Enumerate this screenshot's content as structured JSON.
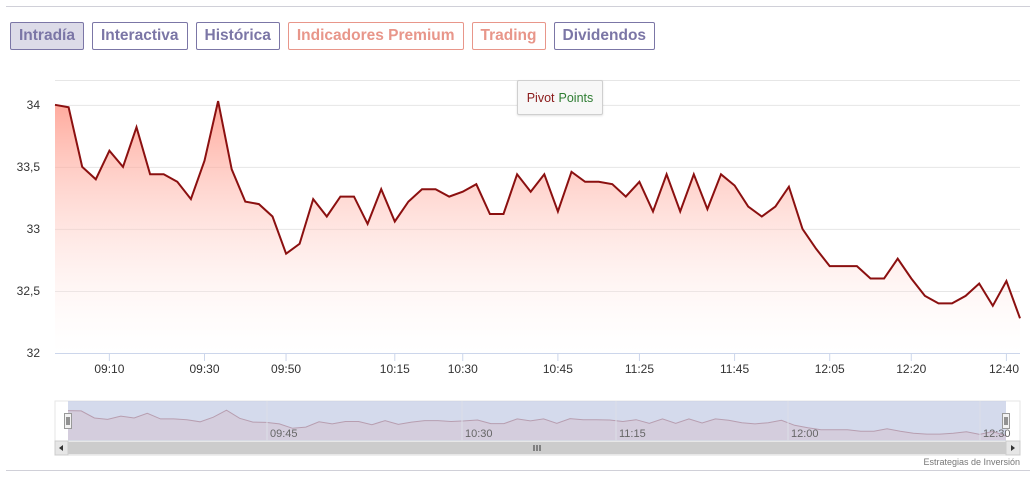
{
  "tabs": [
    {
      "label": "Intradía",
      "style": "purple",
      "active": true
    },
    {
      "label": "Interactiva",
      "style": "purple",
      "active": false
    },
    {
      "label": "Histórica",
      "style": "purple",
      "active": false
    },
    {
      "label": "Indicadores Premium",
      "style": "salmon",
      "active": false
    },
    {
      "label": "Trading",
      "style": "salmon",
      "active": false
    },
    {
      "label": "Dividendos",
      "style": "purple",
      "active": false
    }
  ],
  "pivot_button": {
    "word1": "Pivot",
    "word2": "Points"
  },
  "credit": "Estrategias de Inversión",
  "colors": {
    "line": "#8b1010",
    "fill_top": "#ff8c7a",
    "navigator_mask": "#c5cde6",
    "tab_purple": "#7b76a6",
    "tab_salmon": "#e8968a"
  },
  "chart_data": {
    "type": "area",
    "title": "",
    "xlabel": "",
    "ylabel": "",
    "ylim": [
      32,
      34.2
    ],
    "y_ticks": [
      "32",
      "32,5",
      "33",
      "33,5",
      "34"
    ],
    "y_tick_values": [
      32,
      32.5,
      33,
      33.5,
      34
    ],
    "x_ticks": [
      {
        "label": "09:10",
        "index": 4
      },
      {
        "label": "09:30",
        "index": 11
      },
      {
        "label": "09:50",
        "index": 17
      },
      {
        "label": "10:15",
        "index": 25
      },
      {
        "label": "10:30",
        "index": 30
      },
      {
        "label": "10:45",
        "index": 37
      },
      {
        "label": "11:25",
        "index": 43
      },
      {
        "label": "11:45",
        "index": 50
      },
      {
        "label": "12:05",
        "index": 57
      },
      {
        "label": "12:20",
        "index": 63
      },
      {
        "label": "12:40",
        "index": 70
      }
    ],
    "series": [
      {
        "values": [
          34.0,
          33.98,
          33.5,
          33.4,
          33.63,
          33.5,
          33.82,
          33.44,
          33.44,
          33.38,
          33.24,
          33.55,
          34.03,
          33.48,
          33.22,
          33.2,
          33.1,
          32.8,
          32.88,
          33.24,
          33.1,
          33.26,
          33.26,
          33.04,
          33.32,
          33.06,
          33.22,
          33.32,
          33.32,
          33.26,
          33.3,
          33.36,
          33.12,
          33.12,
          33.44,
          33.3,
          33.44,
          33.14,
          33.46,
          33.38,
          33.38,
          33.36,
          33.26,
          33.38,
          33.14,
          33.44,
          33.14,
          33.44,
          33.16,
          33.44,
          33.35,
          33.18,
          33.1,
          33.18,
          33.34,
          33.0,
          32.84,
          32.7,
          32.7,
          32.7,
          32.6,
          32.6,
          32.76,
          32.6,
          32.46,
          32.4,
          32.4,
          32.46,
          32.56,
          32.38,
          32.58,
          32.28
        ]
      }
    ],
    "navigator": {
      "x_ticks": [
        "09:45",
        "10:30",
        "11:15",
        "12:00",
        "12:30"
      ]
    }
  }
}
